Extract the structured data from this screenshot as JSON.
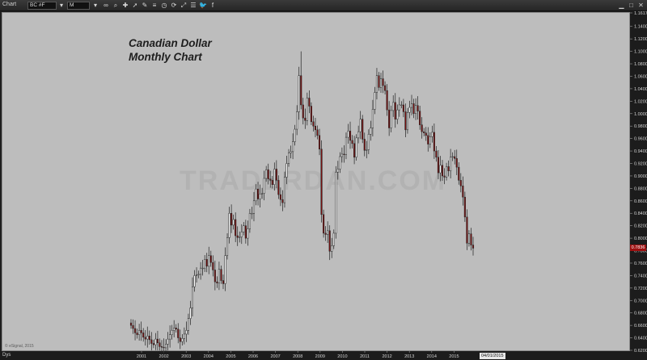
{
  "toolbar": {
    "title": "Chart",
    "symbol_value": "BC #F",
    "interval_value": "M",
    "icons": [
      "link-icon",
      "zoom-icon",
      "crosshair-icon",
      "cursor-icon",
      "pencil-icon",
      "fibonacci-icon",
      "clock-icon",
      "sync-icon",
      "expand-icon",
      "list-icon",
      "twitter-icon",
      "facebook-icon"
    ]
  },
  "window_controls": [
    "minimize",
    "maximize",
    "close"
  ],
  "chart": {
    "annotation_line1": "Canadian Dollar",
    "annotation_line2": "Monthly Chart",
    "watermark": "TRADERDAN.COM",
    "credit": "© eSignal, 2015",
    "current_price_label": "0.7836",
    "last_date_label": "04/01/2015",
    "period_label": "Dys",
    "bull_color": "#ffffff",
    "bear_color": "#7a1010"
  },
  "chart_data": {
    "type": "candlestick",
    "title": "Canadian Dollar Monthly Chart",
    "ylim": [
      0.62,
      1.1617
    ],
    "y_ticks": [
      "1.1617",
      "1.1400",
      "1.1200",
      "1.1000",
      "1.0800",
      "1.0600",
      "1.0400",
      "1.0200",
      "1.0000",
      "0.9800",
      "0.9600",
      "0.9400",
      "0.9200",
      "0.9000",
      "0.8800",
      "0.8600",
      "0.8400",
      "0.8200",
      "0.8000",
      "0.7800",
      "0.7600",
      "0.7400",
      "0.7200",
      "0.7000",
      "0.6800",
      "0.6600",
      "0.6400",
      "0.6200"
    ],
    "x_ticks": [
      "2001",
      "2002",
      "2003",
      "2004",
      "2005",
      "2006",
      "2007",
      "2008",
      "2009",
      "2010",
      "2011",
      "2012",
      "2013",
      "2014",
      "2015"
    ],
    "x_start_year": 2000.5,
    "x_end_year": 2015.5,
    "closes": [
      0.66,
      0.655,
      0.648,
      0.645,
      0.652,
      0.648,
      0.641,
      0.638,
      0.643,
      0.637,
      0.631,
      0.629,
      0.638,
      0.632,
      0.626,
      0.625,
      0.624,
      0.63,
      0.638,
      0.645,
      0.652,
      0.656,
      0.654,
      0.64,
      0.634,
      0.639,
      0.646,
      0.652,
      0.671,
      0.688,
      0.722,
      0.74,
      0.741,
      0.742,
      0.752,
      0.752,
      0.766,
      0.755,
      0.772,
      0.761,
      0.749,
      0.73,
      0.728,
      0.75,
      0.732,
      0.727,
      0.772,
      0.801,
      0.84,
      0.821,
      0.83,
      0.804,
      0.801,
      0.802,
      0.81,
      0.82,
      0.8,
      0.815,
      0.84,
      0.84,
      0.86,
      0.879,
      0.863,
      0.871,
      0.872,
      0.896,
      0.91,
      0.895,
      0.893,
      0.886,
      0.911,
      0.893,
      0.87,
      0.862,
      0.857,
      0.898,
      0.92,
      0.937,
      0.939,
      0.955,
      0.975,
      1.003,
      1.061,
      1.014,
      0.993,
      0.989,
      1.025,
      1.012,
      0.987,
      0.98,
      0.974,
      0.965,
      0.943,
      0.838,
      0.808,
      0.806,
      0.812,
      0.779,
      0.788,
      0.808,
      0.906,
      0.911,
      0.931,
      0.935,
      0.934,
      0.962,
      0.972,
      0.957,
      0.952,
      0.93,
      0.961,
      0.971,
      0.991,
      0.959,
      0.941,
      0.942,
      0.967,
      0.977,
      1.007,
      1.034,
      1.061,
      1.042,
      1.056,
      1.045,
      1.037,
      1.006,
      0.977,
      1.005,
      1.018,
      0.991,
      1.006,
      1.014,
      1.014,
      1.003,
      0.974,
      1.002,
      1.01,
      1.016,
      1.0,
      1.013,
      1.004,
      0.982,
      0.971,
      0.969,
      0.965,
      0.951,
      0.963,
      0.97,
      0.94,
      0.93,
      0.905,
      0.917,
      0.9,
      0.898,
      0.915,
      0.908,
      0.93,
      0.931,
      0.928,
      0.914,
      0.893,
      0.884,
      0.866,
      0.834,
      0.792,
      0.807,
      0.789,
      0.784
    ]
  }
}
